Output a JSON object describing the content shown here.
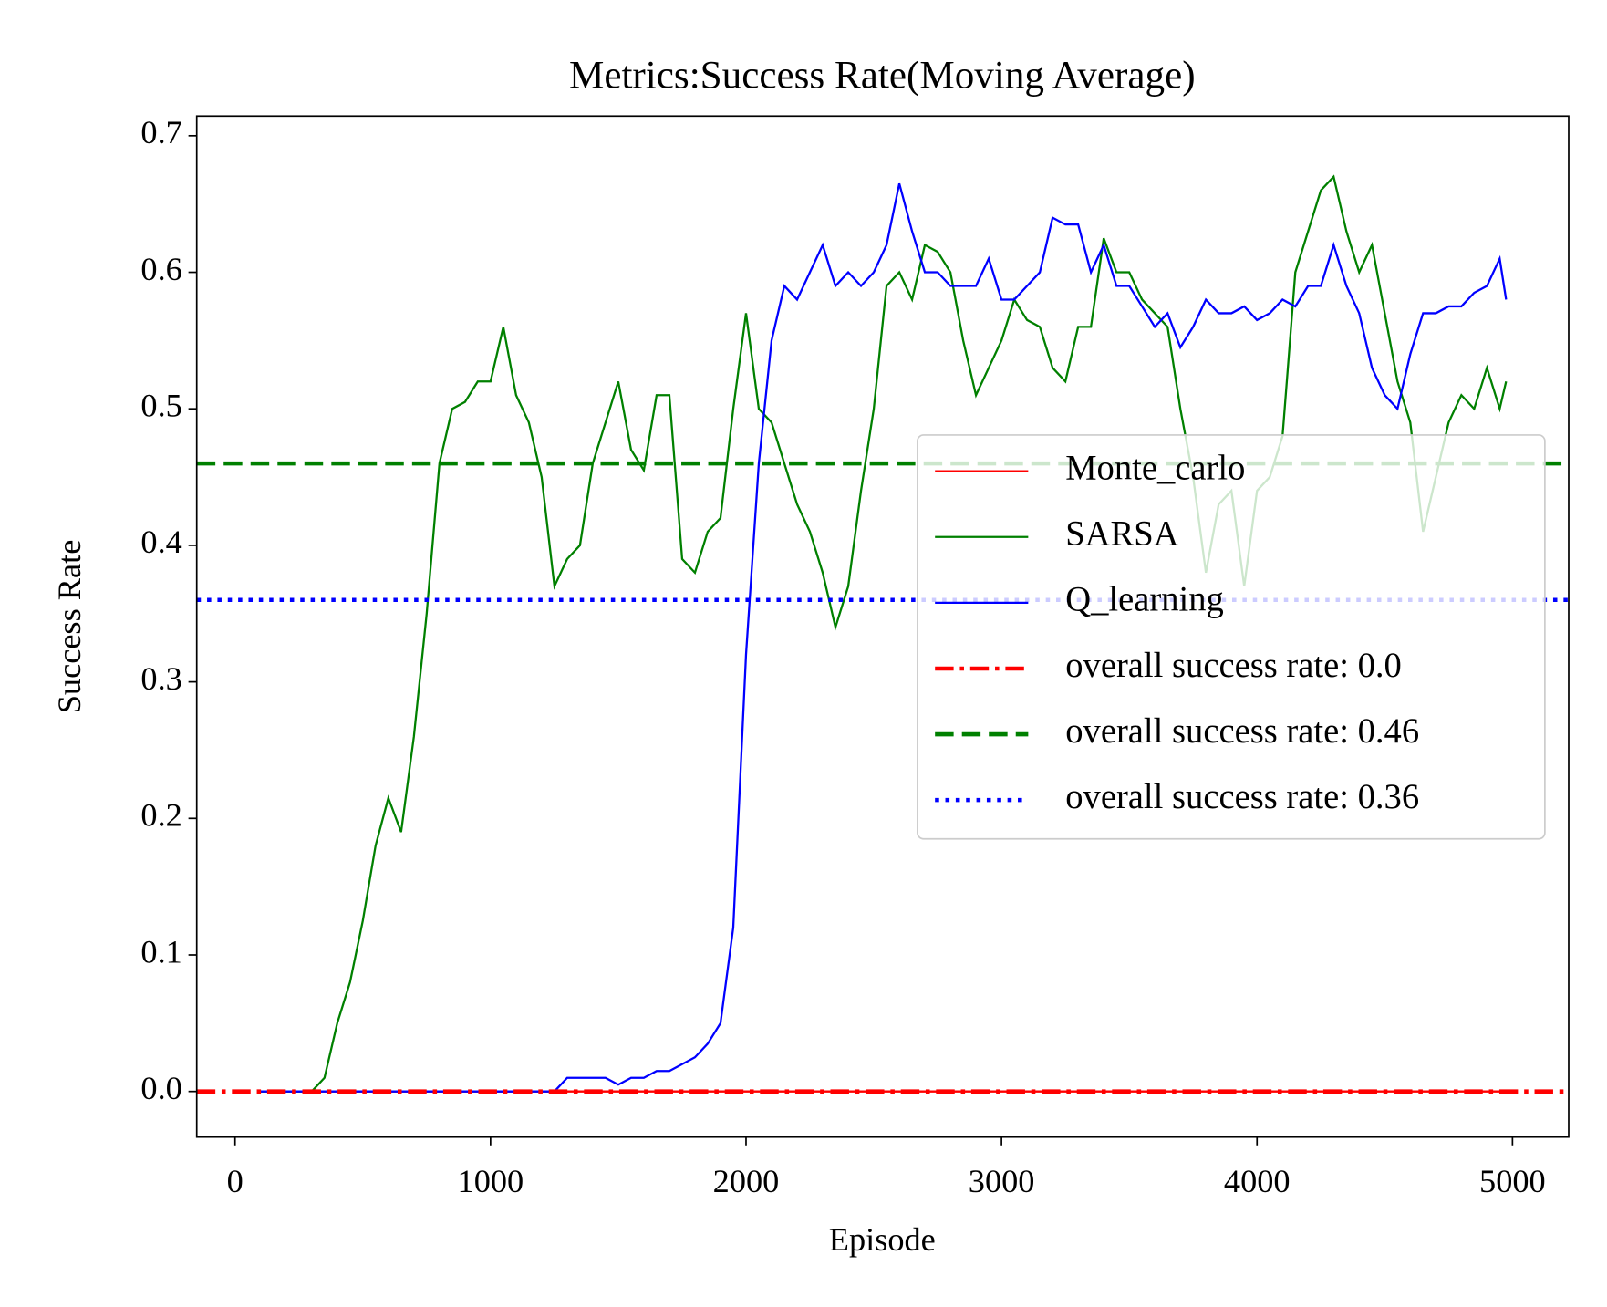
{
  "chart_data": {
    "type": "line",
    "title": "Metrics:Success Rate(Moving Average)",
    "xlabel": "Episode",
    "ylabel": "Success Rate",
    "x": [
      100,
      150,
      200,
      250,
      300,
      350,
      400,
      450,
      500,
      550,
      600,
      650,
      700,
      750,
      800,
      850,
      900,
      950,
      1000,
      1050,
      1100,
      1150,
      1200,
      1250,
      1300,
      1350,
      1400,
      1450,
      1500,
      1550,
      1600,
      1650,
      1700,
      1750,
      1800,
      1850,
      1900,
      1950,
      2000,
      2050,
      2100,
      2150,
      2200,
      2250,
      2300,
      2350,
      2400,
      2450,
      2500,
      2550,
      2600,
      2650,
      2700,
      2750,
      2800,
      2850,
      2900,
      2950,
      3000,
      3050,
      3100,
      3150,
      3200,
      3250,
      3300,
      3350,
      3400,
      3450,
      3500,
      3550,
      3600,
      3650,
      3700,
      3750,
      3800,
      3850,
      3900,
      3950,
      4000,
      4050,
      4100,
      4150,
      4200,
      4250,
      4300,
      4350,
      4400,
      4450,
      4500,
      4550,
      4600,
      4650,
      4700,
      4750,
      4800,
      4850,
      4900,
      4950,
      4975
    ],
    "series": [
      {
        "name": "Monte_carlo",
        "color": "#ff0000",
        "values": [
          0,
          0,
          0,
          0,
          0,
          0,
          0,
          0,
          0,
          0,
          0,
          0,
          0,
          0,
          0,
          0,
          0,
          0,
          0,
          0,
          0,
          0,
          0,
          0,
          0,
          0,
          0,
          0,
          0,
          0,
          0,
          0,
          0,
          0,
          0,
          0,
          0,
          0,
          0,
          0,
          0,
          0,
          0,
          0,
          0,
          0,
          0,
          0,
          0,
          0,
          0,
          0,
          0,
          0,
          0,
          0,
          0,
          0,
          0,
          0,
          0,
          0,
          0,
          0,
          0,
          0,
          0,
          0,
          0,
          0,
          0,
          0,
          0,
          0,
          0,
          0,
          0,
          0,
          0,
          0,
          0,
          0,
          0,
          0,
          0,
          0,
          0,
          0,
          0,
          0,
          0,
          0,
          0,
          0,
          0,
          0,
          0,
          0,
          0
        ]
      },
      {
        "name": "SARSA",
        "color": "#008000",
        "values": [
          0,
          0,
          0,
          0,
          0,
          0.01,
          0.05,
          0.08,
          0.125,
          0.18,
          0.215,
          0.19,
          0.26,
          0.35,
          0.46,
          0.5,
          0.505,
          0.52,
          0.52,
          0.56,
          0.51,
          0.49,
          0.45,
          0.37,
          0.39,
          0.4,
          0.46,
          0.49,
          0.52,
          0.47,
          0.455,
          0.51,
          0.51,
          0.39,
          0.38,
          0.41,
          0.42,
          0.5,
          0.57,
          0.5,
          0.49,
          0.46,
          0.43,
          0.41,
          0.38,
          0.34,
          0.37,
          0.44,
          0.5,
          0.59,
          0.6,
          0.58,
          0.62,
          0.615,
          0.6,
          0.55,
          0.51,
          0.53,
          0.55,
          0.58,
          0.565,
          0.56,
          0.53,
          0.52,
          0.56,
          0.56,
          0.625,
          0.6,
          0.6,
          0.58,
          0.57,
          0.56,
          0.5,
          0.45,
          0.38,
          0.43,
          0.44,
          0.37,
          0.44,
          0.45,
          0.48,
          0.6,
          0.63,
          0.66,
          0.67,
          0.63,
          0.6,
          0.62,
          0.57,
          0.52,
          0.49,
          0.41,
          0.45,
          0.49,
          0.51,
          0.5,
          0.53,
          0.5,
          0.52
        ]
      },
      {
        "name": "Q_learning",
        "color": "#0000ff",
        "values": [
          0,
          0,
          0,
          0,
          0,
          0,
          0,
          0,
          0,
          0,
          0,
          0,
          0,
          0,
          0,
          0,
          0,
          0,
          0,
          0,
          0,
          0,
          0,
          0,
          0.01,
          0.01,
          0.01,
          0.01,
          0.005,
          0.01,
          0.01,
          0.015,
          0.015,
          0.02,
          0.025,
          0.035,
          0.05,
          0.12,
          0.32,
          0.46,
          0.55,
          0.59,
          0.58,
          0.6,
          0.62,
          0.59,
          0.6,
          0.59,
          0.6,
          0.62,
          0.665,
          0.63,
          0.6,
          0.6,
          0.59,
          0.59,
          0.59,
          0.61,
          0.58,
          0.58,
          0.59,
          0.6,
          0.64,
          0.635,
          0.635,
          0.6,
          0.62,
          0.59,
          0.59,
          0.575,
          0.56,
          0.57,
          0.545,
          0.56,
          0.58,
          0.57,
          0.57,
          0.575,
          0.565,
          0.57,
          0.58,
          0.575,
          0.59,
          0.59,
          0.62,
          0.59,
          0.57,
          0.53,
          0.51,
          0.5,
          0.54,
          0.57,
          0.57,
          0.575,
          0.575,
          0.585,
          0.59,
          0.61,
          0.58
        ]
      }
    ],
    "hlines": [
      {
        "name": "overall success rate: 0.0",
        "value": 0,
        "color": "#ff0000",
        "style": "dashdot"
      },
      {
        "name": "overall success rate: 0.46",
        "value": 0.46,
        "color": "#008000",
        "style": "dashed"
      },
      {
        "name": "overall success rate: 0.36",
        "value": 0.36,
        "color": "#0000ff",
        "style": "dotted"
      }
    ],
    "xlim": [
      -150,
      5220
    ],
    "ylim": [
      -0.0334,
      0.7144
    ],
    "xticks": [
      0,
      1000,
      2000,
      3000,
      4000,
      5000
    ],
    "yticks": [
      {
        "value": 0,
        "label": "0.0"
      },
      0.1,
      0.2,
      0.3,
      0.4,
      0.5,
      0.6,
      0.7
    ],
    "legend": "center right",
    "grid": false
  }
}
